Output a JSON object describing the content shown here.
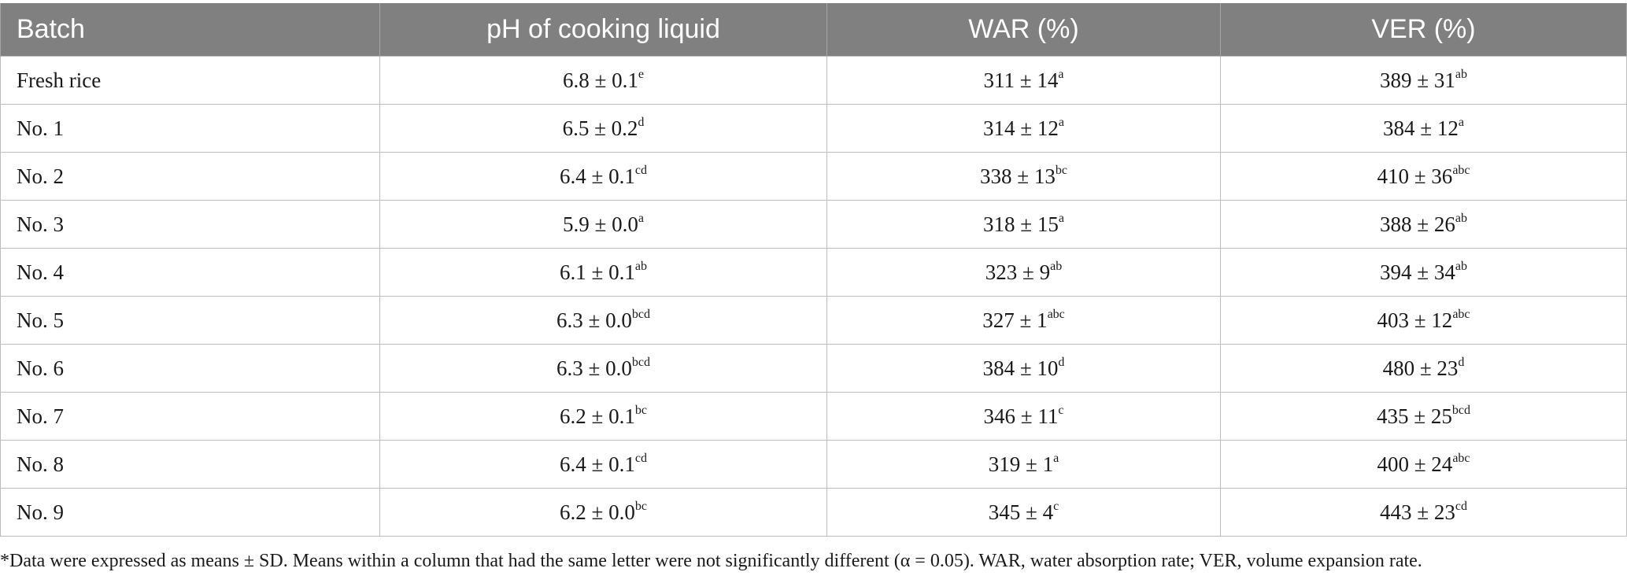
{
  "table": {
    "headers": [
      "Batch",
      "pH of cooking liquid",
      "WAR (%)",
      "VER (%)"
    ],
    "rows": [
      {
        "batch": "Fresh rice",
        "ph": "6.8 ± 0.1",
        "ph_sup": "e",
        "war": "311 ± 14",
        "war_sup": "a",
        "ver": "389 ± 31",
        "ver_sup": "ab"
      },
      {
        "batch": "No. 1",
        "ph": "6.5 ± 0.2",
        "ph_sup": "d",
        "war": "314 ± 12",
        "war_sup": "a",
        "ver": "384 ± 12",
        "ver_sup": "a"
      },
      {
        "batch": "No. 2",
        "ph": "6.4 ± 0.1",
        "ph_sup": "cd",
        "war": "338 ± 13",
        "war_sup": "bc",
        "ver": "410 ± 36",
        "ver_sup": "abc"
      },
      {
        "batch": "No. 3",
        "ph": "5.9 ± 0.0",
        "ph_sup": "a",
        "war": "318 ± 15",
        "war_sup": "a",
        "ver": "388 ± 26",
        "ver_sup": "ab"
      },
      {
        "batch": "No. 4",
        "ph": "6.1 ± 0.1",
        "ph_sup": "ab",
        "war": "323 ± 9",
        "war_sup": "ab",
        "ver": "394 ± 34",
        "ver_sup": "ab"
      },
      {
        "batch": "No. 5",
        "ph": "6.3 ± 0.0",
        "ph_sup": "bcd",
        "war": "327 ± 1",
        "war_sup": "abc",
        "ver": "403 ± 12",
        "ver_sup": "abc"
      },
      {
        "batch": "No. 6",
        "ph": "6.3 ± 0.0",
        "ph_sup": "bcd",
        "war": "384 ± 10",
        "war_sup": "d",
        "ver": "480 ± 23",
        "ver_sup": "d"
      },
      {
        "batch": "No. 7",
        "ph": "6.2 ± 0.1",
        "ph_sup": "bc",
        "war": "346 ± 11",
        "war_sup": "c",
        "ver": "435 ± 25",
        "ver_sup": "bcd"
      },
      {
        "batch": "No. 8",
        "ph": "6.4 ± 0.1",
        "ph_sup": "cd",
        "war": "319 ± 1",
        "war_sup": "a",
        "ver": "400 ± 24",
        "ver_sup": "abc"
      },
      {
        "batch": "No. 9",
        "ph": "6.2 ± 0.0",
        "ph_sup": "bc",
        "war": "345 ± 4",
        "war_sup": "c",
        "ver": "443 ± 23",
        "ver_sup": "cd"
      }
    ]
  },
  "footnote": "*Data were expressed as means ± SD. Means within a column that had the same letter were not significantly different (α = 0.05). WAR, water absorption rate; VER, volume expansion rate.",
  "colors": {
    "header_bg": "#808080",
    "header_text": "#ffffff",
    "grid": "#bdbdbd"
  }
}
